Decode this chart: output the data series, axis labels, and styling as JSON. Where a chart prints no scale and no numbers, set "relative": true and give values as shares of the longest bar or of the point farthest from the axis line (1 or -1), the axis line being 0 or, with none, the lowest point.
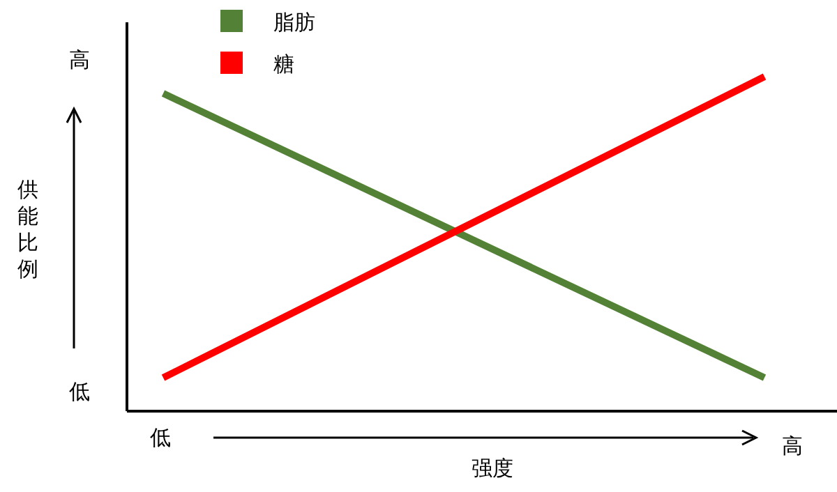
{
  "chart_data": {
    "type": "line",
    "relative": true,
    "xlabel": "强度",
    "ylabel": "供能比例",
    "categories": [
      null,
      null
    ],
    "series": [
      {
        "name": "脂肪",
        "color": "#538135",
        "values": [
          0.95,
          0.1
        ]
      },
      {
        "name": "糖",
        "color": "#ff0000",
        "values": [
          0.1,
          1
        ]
      }
    ],
    "annotations": [
      "高",
      "低",
      "低",
      "高"
    ],
    "legend": "top left",
    "grid": false,
    "marker": "none",
    "line_style": "solid"
  }
}
